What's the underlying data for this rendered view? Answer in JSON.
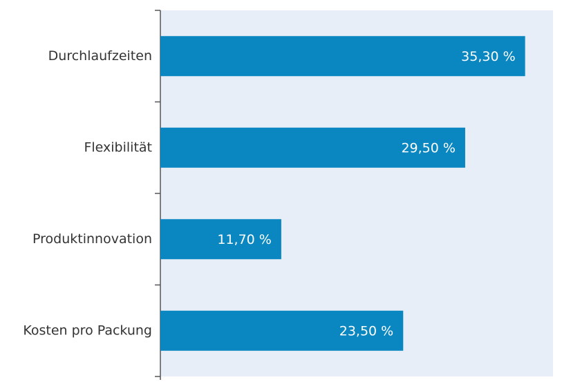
{
  "chart_data": {
    "type": "hbar",
    "categories": [
      "Durchlaufzeiten",
      "Flexibilität",
      "Produktinnovation",
      "Kosten pro Packung"
    ],
    "values": [
      35.3,
      29.5,
      11.7,
      23.5
    ],
    "value_labels": [
      "35,30 %",
      "29,50 %",
      "11,70 %",
      "23,50 %"
    ],
    "color": "#0a87c0",
    "xlim": [
      0,
      38
    ]
  }
}
